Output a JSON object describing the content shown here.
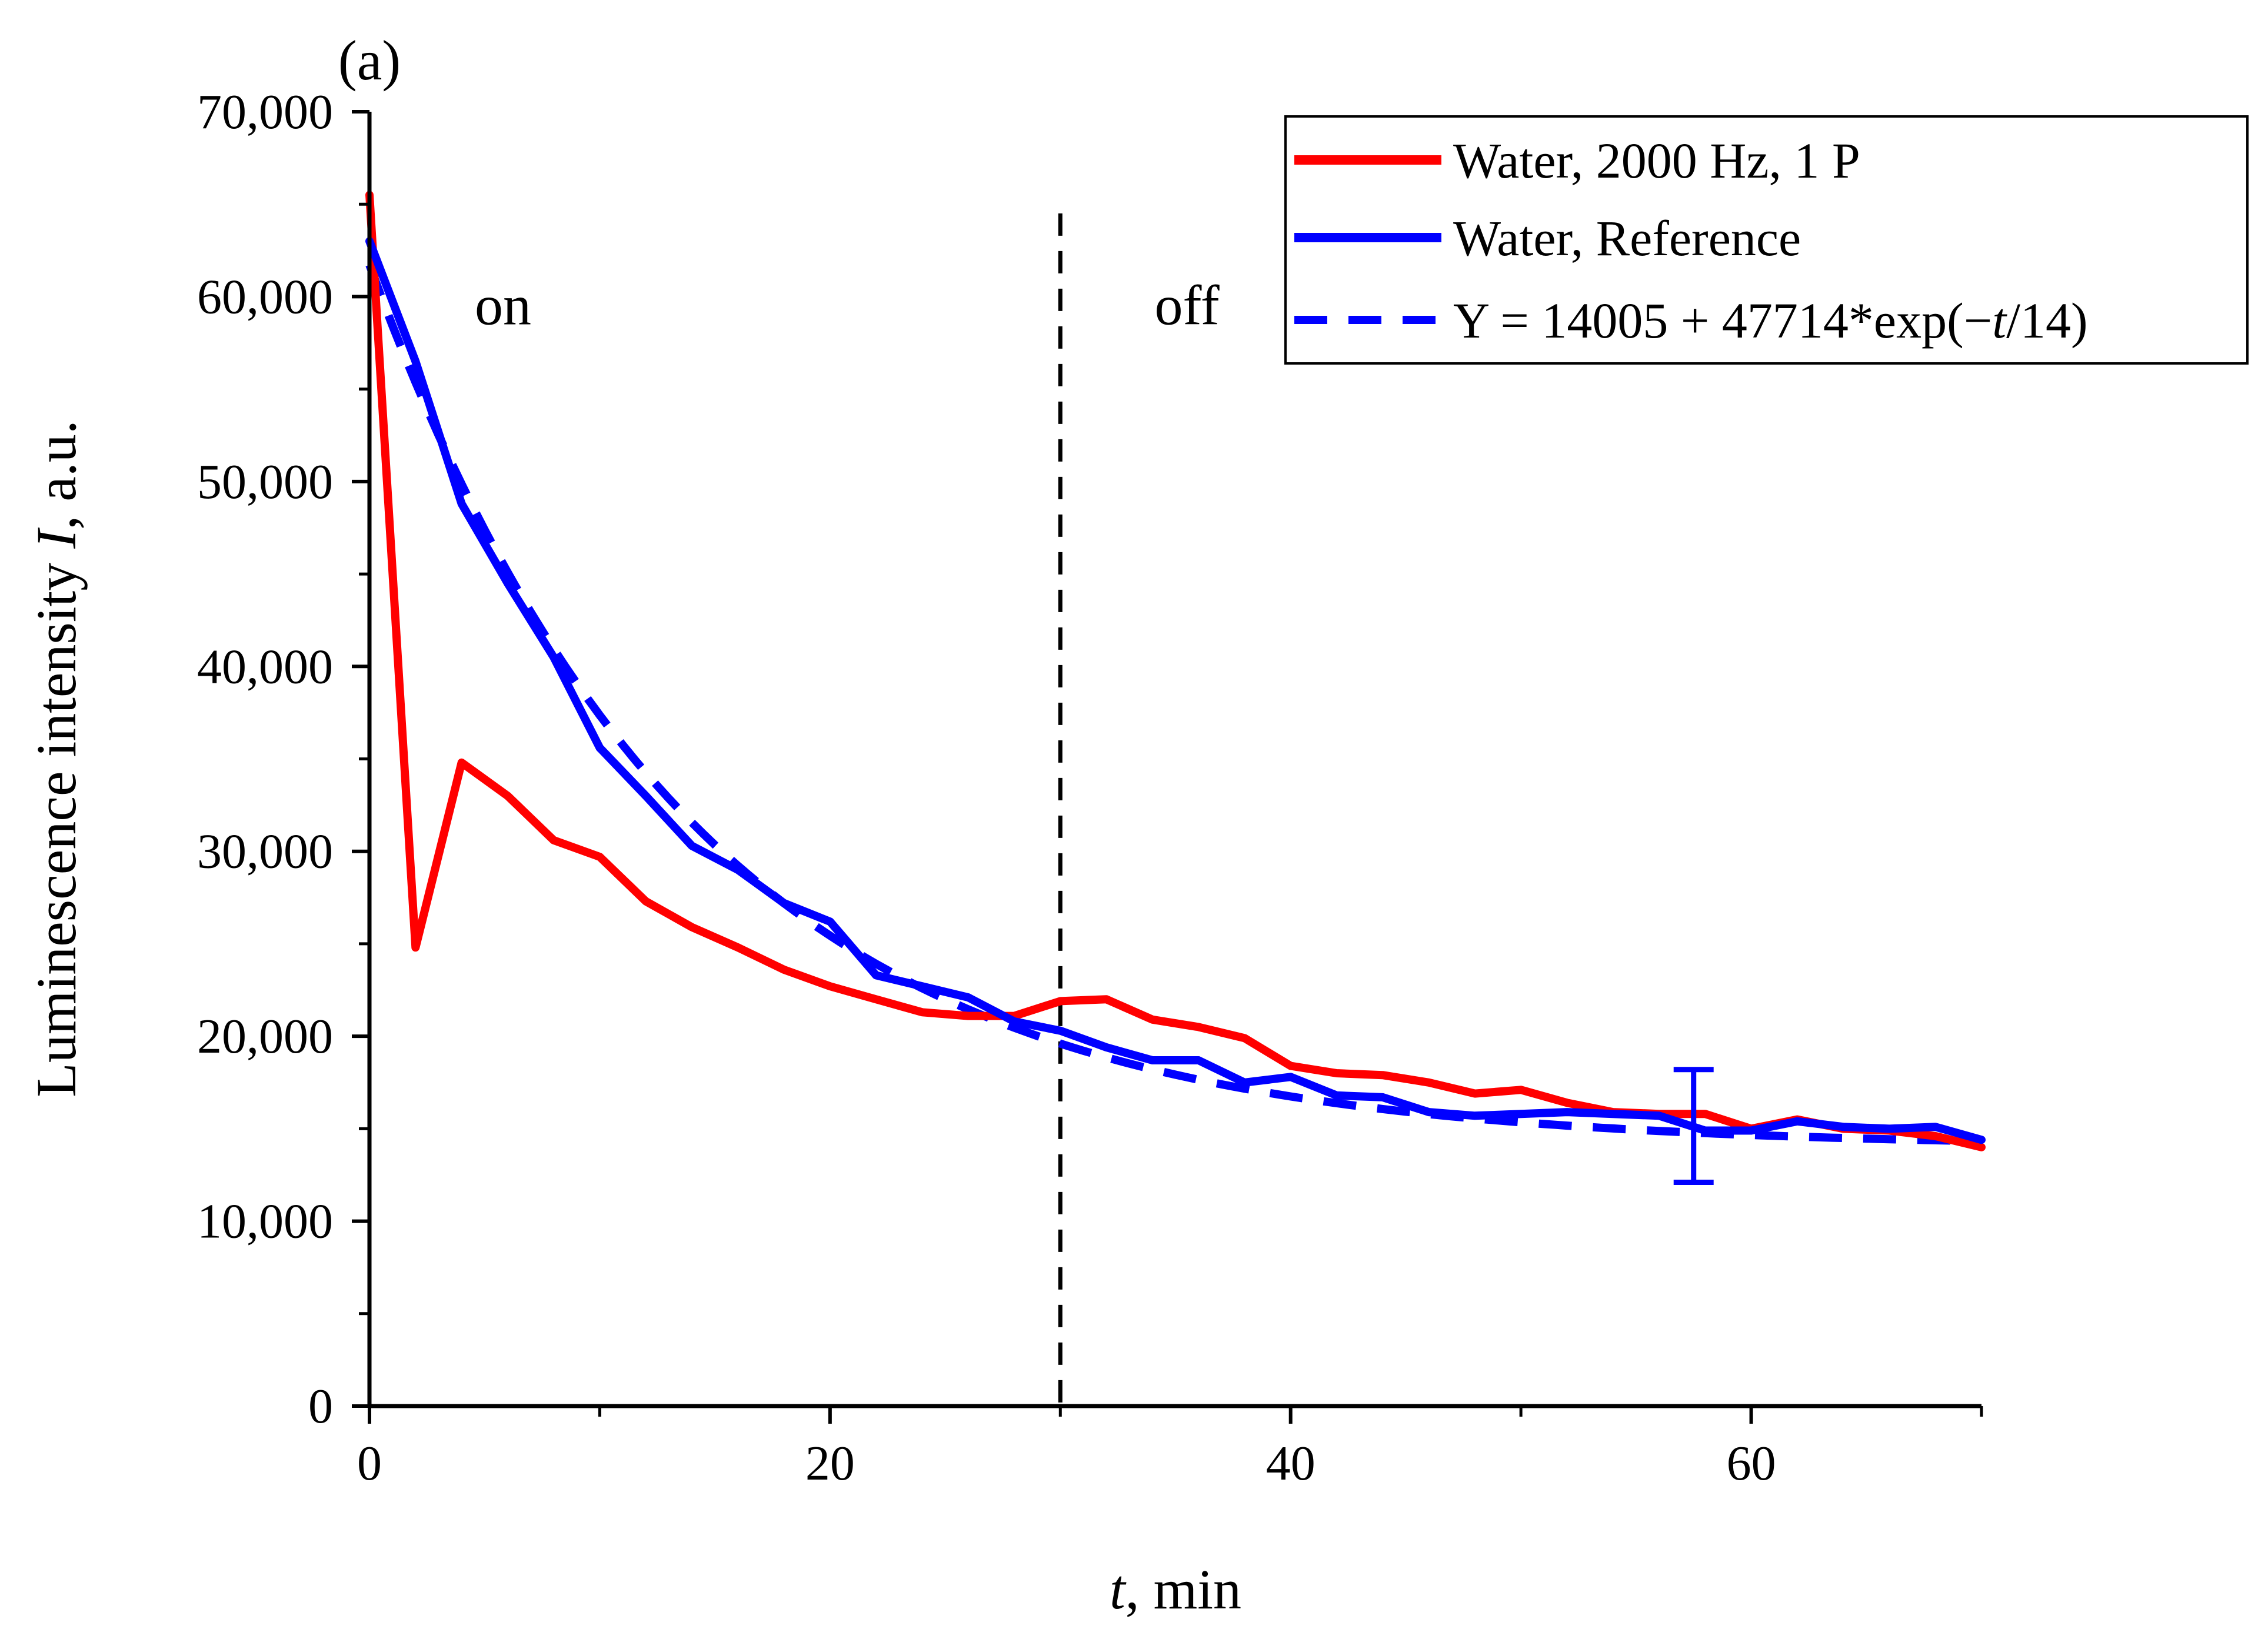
{
  "chart_data": {
    "type": "line",
    "panel_label": "(a)",
    "xlabel": {
      "italic": "t",
      "rest": ", min"
    },
    "ylabel": {
      "before": "Luminescence intensity ",
      "italic": "I",
      "after": ", a.u."
    },
    "xlim": [
      0,
      70
    ],
    "ylim": [
      0,
      70000
    ],
    "x_ticks": [
      0,
      20,
      40,
      60
    ],
    "x_tick_labels": [
      "0",
      "20",
      "40",
      "60"
    ],
    "x_minor_ticks": [
      10,
      30,
      50,
      70
    ],
    "y_ticks": [
      0,
      10000,
      20000,
      30000,
      40000,
      50000,
      60000,
      70000
    ],
    "y_tick_labels": [
      "0",
      "10,000",
      "20,000",
      "30,000",
      "40,000",
      "50,000",
      "60,000",
      "70,000"
    ],
    "y_minor_ticks": [
      5000,
      15000,
      25000,
      35000,
      45000,
      55000,
      65000
    ],
    "grid": false,
    "legend_position": "top-right",
    "annotations": [
      {
        "text": "on",
        "x": 5.8,
        "y": 58500
      },
      {
        "text": "off",
        "x": 35.5,
        "y": 58500
      }
    ],
    "vertical_lines": [
      {
        "x": 30,
        "y_from": 0,
        "y_to": 64500,
        "style": "dashed",
        "color": "#000000"
      }
    ],
    "series": [
      {
        "name": "Water, 2000 Hz, 1 P",
        "color": "#ff0000",
        "style": "solid",
        "x": [
          0,
          2,
          4,
          6,
          8,
          10,
          12,
          14,
          16,
          18,
          20,
          22,
          24,
          26,
          28,
          30,
          32,
          34,
          36,
          38,
          40,
          42,
          44,
          46,
          48,
          50,
          52,
          54,
          56,
          58,
          60,
          62,
          64,
          66,
          68,
          70
        ],
        "y": [
          65500,
          24800,
          34800,
          33000,
          30600,
          29700,
          27300,
          25900,
          24800,
          23600,
          22700,
          22000,
          21300,
          21100,
          21100,
          21900,
          22000,
          20900,
          20500,
          19900,
          18400,
          18000,
          17900,
          17500,
          16900,
          17100,
          16400,
          15900,
          15800,
          15800,
          15000,
          15500,
          15000,
          14900,
          14600,
          14000
        ]
      },
      {
        "name": "Water, Reference",
        "color": "#0000ff",
        "style": "solid",
        "x": [
          0,
          2,
          4,
          6,
          8,
          10,
          12,
          14,
          16,
          18,
          20,
          22,
          24,
          26,
          28,
          30,
          32,
          34,
          36,
          38,
          40,
          42,
          44,
          46,
          48,
          50,
          52,
          54,
          56,
          58,
          60,
          62,
          64,
          66,
          68,
          70
        ],
        "y": [
          63000,
          56500,
          48800,
          44500,
          40500,
          35600,
          33000,
          30300,
          29000,
          27200,
          26200,
          23300,
          22700,
          22100,
          20800,
          20300,
          19400,
          18700,
          18700,
          17500,
          17800,
          16800,
          16700,
          15900,
          15700,
          15800,
          15900,
          15800,
          15700,
          14900,
          14900,
          15400,
          15100,
          15000,
          15100,
          14400
        ]
      },
      {
        "name": "Y = 14005 + 47714*exp(−t/14)",
        "legend_parts": [
          "Y = 14005 + 47714*exp(−",
          "t",
          "/14)"
        ],
        "color": "#0000ff",
        "style": "dashed",
        "fit": {
          "y0": 14005,
          "A": 47714,
          "tau": 14
        }
      }
    ],
    "error_bars": [
      {
        "series": "Water, Reference",
        "x": 57.5,
        "y": 15000,
        "low": 12100,
        "high": 18200,
        "color": "#0000ff"
      }
    ]
  }
}
